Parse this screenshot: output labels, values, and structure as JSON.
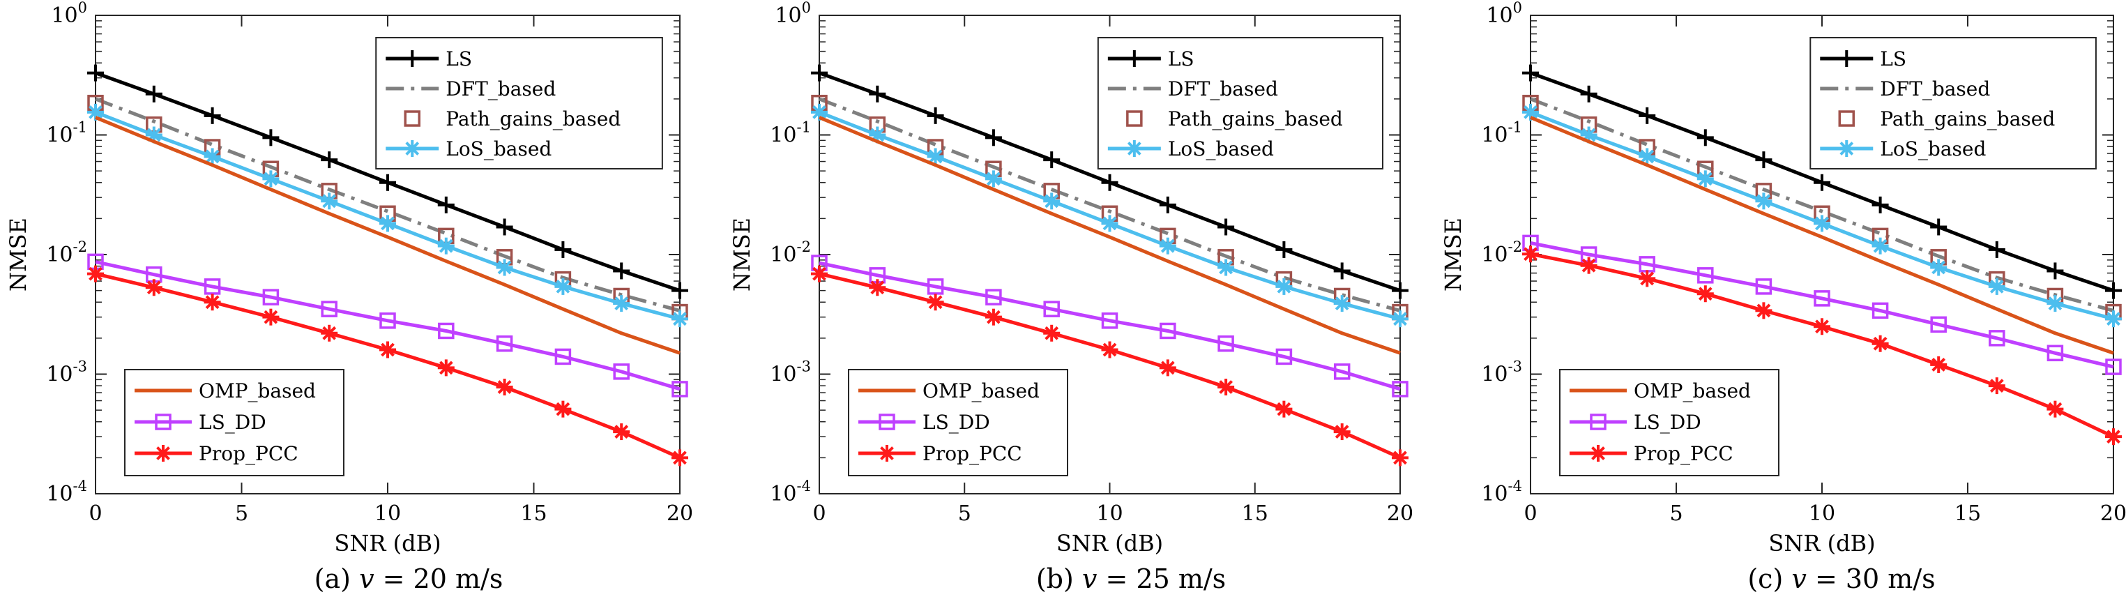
{
  "chart_data": [
    {
      "type": "line",
      "xlabel": "SNR (dB)",
      "ylabel": "NMSE",
      "yscale": "log",
      "xlim": [
        0,
        20
      ],
      "ylim": [
        0.0001,
        1
      ],
      "xticks": [
        0,
        5,
        10,
        15,
        20
      ],
      "yticks": [
        {
          "base": "10",
          "exp": "-4"
        },
        {
          "base": "10",
          "exp": "-3"
        },
        {
          "base": "10",
          "exp": "-2"
        },
        {
          "base": "10",
          "exp": "-1"
        },
        {
          "base": "10",
          "exp": "0"
        }
      ],
      "x": [
        0,
        2,
        4,
        6,
        8,
        10,
        12,
        14,
        16,
        18,
        20
      ],
      "caption": {
        "label": "(a)",
        "var": "v",
        "eq": "= 20 m/s"
      },
      "series": [
        {
          "name": "LS",
          "values": [
            0.33,
            0.22,
            0.145,
            0.095,
            0.062,
            0.04,
            0.026,
            0.017,
            0.011,
            0.0073,
            0.005
          ]
        },
        {
          "name": "DFT_based",
          "values": [
            0.2,
            0.13,
            0.083,
            0.054,
            0.035,
            0.023,
            0.015,
            0.0097,
            0.0064,
            0.0046,
            0.0034
          ]
        },
        {
          "name": "Path_gains_based",
          "values": [
            0.185,
            0.122,
            0.079,
            0.052,
            0.034,
            0.022,
            0.0143,
            0.0095,
            0.0062,
            0.0045,
            0.0033
          ]
        },
        {
          "name": "LoS_based",
          "values": [
            0.155,
            0.1,
            0.066,
            0.043,
            0.028,
            0.0182,
            0.0118,
            0.0078,
            0.0054,
            0.0039,
            0.0029
          ]
        },
        {
          "name": "OMP_based",
          "values": [
            0.14,
            0.088,
            0.056,
            0.035,
            0.022,
            0.014,
            0.0088,
            0.0056,
            0.0035,
            0.0022,
            0.0015
          ]
        },
        {
          "name": "LS_DD",
          "values": [
            0.0087,
            0.0068,
            0.0054,
            0.0044,
            0.0035,
            0.0028,
            0.0023,
            0.0018,
            0.0014,
            0.00105,
            0.00075
          ]
        },
        {
          "name": "Prop_PCC",
          "values": [
            0.0069,
            0.0053,
            0.004,
            0.003,
            0.0022,
            0.0016,
            0.00113,
            0.00078,
            0.00051,
            0.00033,
            0.0002
          ]
        }
      ]
    },
    {
      "type": "line",
      "xlabel": "SNR (dB)",
      "ylabel": "NMSE",
      "yscale": "log",
      "xlim": [
        0,
        20
      ],
      "ylim": [
        0.0001,
        1
      ],
      "xticks": [
        0,
        5,
        10,
        15,
        20
      ],
      "yticks": [
        {
          "base": "10",
          "exp": "-4"
        },
        {
          "base": "10",
          "exp": "-3"
        },
        {
          "base": "10",
          "exp": "-2"
        },
        {
          "base": "10",
          "exp": "-1"
        },
        {
          "base": "10",
          "exp": "0"
        }
      ],
      "x": [
        0,
        2,
        4,
        6,
        8,
        10,
        12,
        14,
        16,
        18,
        20
      ],
      "caption": {
        "label": "(b)",
        "var": "v",
        "eq": "= 25 m/s"
      },
      "series": [
        {
          "name": "LS",
          "values": [
            0.33,
            0.22,
            0.145,
            0.095,
            0.062,
            0.04,
            0.026,
            0.017,
            0.011,
            0.0073,
            0.005
          ]
        },
        {
          "name": "DFT_based",
          "values": [
            0.2,
            0.13,
            0.083,
            0.054,
            0.035,
            0.023,
            0.015,
            0.0097,
            0.0064,
            0.0046,
            0.0034
          ]
        },
        {
          "name": "Path_gains_based",
          "values": [
            0.185,
            0.122,
            0.079,
            0.052,
            0.034,
            0.022,
            0.0143,
            0.0095,
            0.0062,
            0.0045,
            0.0033
          ]
        },
        {
          "name": "LoS_based",
          "values": [
            0.155,
            0.1,
            0.066,
            0.043,
            0.028,
            0.0182,
            0.0118,
            0.0078,
            0.0054,
            0.0039,
            0.0029
          ]
        },
        {
          "name": "OMP_based",
          "values": [
            0.14,
            0.088,
            0.056,
            0.035,
            0.022,
            0.014,
            0.0088,
            0.0056,
            0.0035,
            0.0022,
            0.0015
          ]
        },
        {
          "name": "LS_DD",
          "values": [
            0.0085,
            0.0067,
            0.0054,
            0.0044,
            0.0035,
            0.0028,
            0.0023,
            0.0018,
            0.0014,
            0.00105,
            0.00075
          ]
        },
        {
          "name": "Prop_PCC",
          "values": [
            0.0069,
            0.0053,
            0.004,
            0.003,
            0.0022,
            0.0016,
            0.00113,
            0.00078,
            0.00051,
            0.00033,
            0.0002
          ]
        }
      ]
    },
    {
      "type": "line",
      "xlabel": "SNR (dB)",
      "ylabel": "NMSE",
      "yscale": "log",
      "xlim": [
        0,
        20
      ],
      "ylim": [
        0.0001,
        1
      ],
      "xticks": [
        0,
        5,
        10,
        15,
        20
      ],
      "yticks": [
        {
          "base": "10",
          "exp": "-4"
        },
        {
          "base": "10",
          "exp": "-3"
        },
        {
          "base": "10",
          "exp": "-2"
        },
        {
          "base": "10",
          "exp": "-1"
        },
        {
          "base": "10",
          "exp": "0"
        }
      ],
      "x": [
        0,
        2,
        4,
        6,
        8,
        10,
        12,
        14,
        16,
        18,
        20
      ],
      "caption": {
        "label": "(c)",
        "var": "v",
        "eq": "= 30 m/s"
      },
      "series": [
        {
          "name": "LS",
          "values": [
            0.33,
            0.22,
            0.145,
            0.095,
            0.062,
            0.04,
            0.026,
            0.017,
            0.011,
            0.0073,
            0.005
          ]
        },
        {
          "name": "DFT_based",
          "values": [
            0.2,
            0.13,
            0.083,
            0.054,
            0.035,
            0.023,
            0.015,
            0.0097,
            0.0064,
            0.0046,
            0.0034
          ]
        },
        {
          "name": "Path_gains_based",
          "values": [
            0.185,
            0.122,
            0.079,
            0.052,
            0.034,
            0.022,
            0.0143,
            0.0095,
            0.0062,
            0.0045,
            0.0033
          ]
        },
        {
          "name": "LoS_based",
          "values": [
            0.155,
            0.1,
            0.066,
            0.043,
            0.028,
            0.0182,
            0.0118,
            0.0078,
            0.0054,
            0.0039,
            0.0029
          ]
        },
        {
          "name": "OMP_based",
          "values": [
            0.14,
            0.088,
            0.056,
            0.035,
            0.022,
            0.014,
            0.0088,
            0.0056,
            0.0035,
            0.0022,
            0.0015
          ]
        },
        {
          "name": "LS_DD",
          "values": [
            0.0125,
            0.01,
            0.0083,
            0.0067,
            0.0054,
            0.0043,
            0.0034,
            0.0026,
            0.002,
            0.0015,
            0.00115
          ]
        },
        {
          "name": "Prop_PCC",
          "values": [
            0.0101,
            0.0081,
            0.0063,
            0.0047,
            0.0034,
            0.0025,
            0.0018,
            0.0012,
            0.0008,
            0.00051,
            0.0003
          ]
        }
      ]
    }
  ],
  "styles": {
    "LS": {
      "color": "#000000",
      "marker": "plus",
      "dash": "solid"
    },
    "DFT_based": {
      "color": "#7f7f7f",
      "marker": "none",
      "dash": "dashdot"
    },
    "Path_gains_based": {
      "color": "#a0524c",
      "marker": "square-open",
      "dash": "none"
    },
    "LoS_based": {
      "color": "#4dbeee",
      "marker": "asterisk",
      "dash": "solid"
    },
    "OMP_based": {
      "color": "#d95319",
      "marker": "none",
      "dash": "solid"
    },
    "LS_DD": {
      "color": "#bf40ff",
      "marker": "square-open",
      "dash": "solid"
    },
    "Prop_PCC": {
      "color": "#ff1a1a",
      "marker": "asterisk",
      "dash": "solid"
    }
  }
}
